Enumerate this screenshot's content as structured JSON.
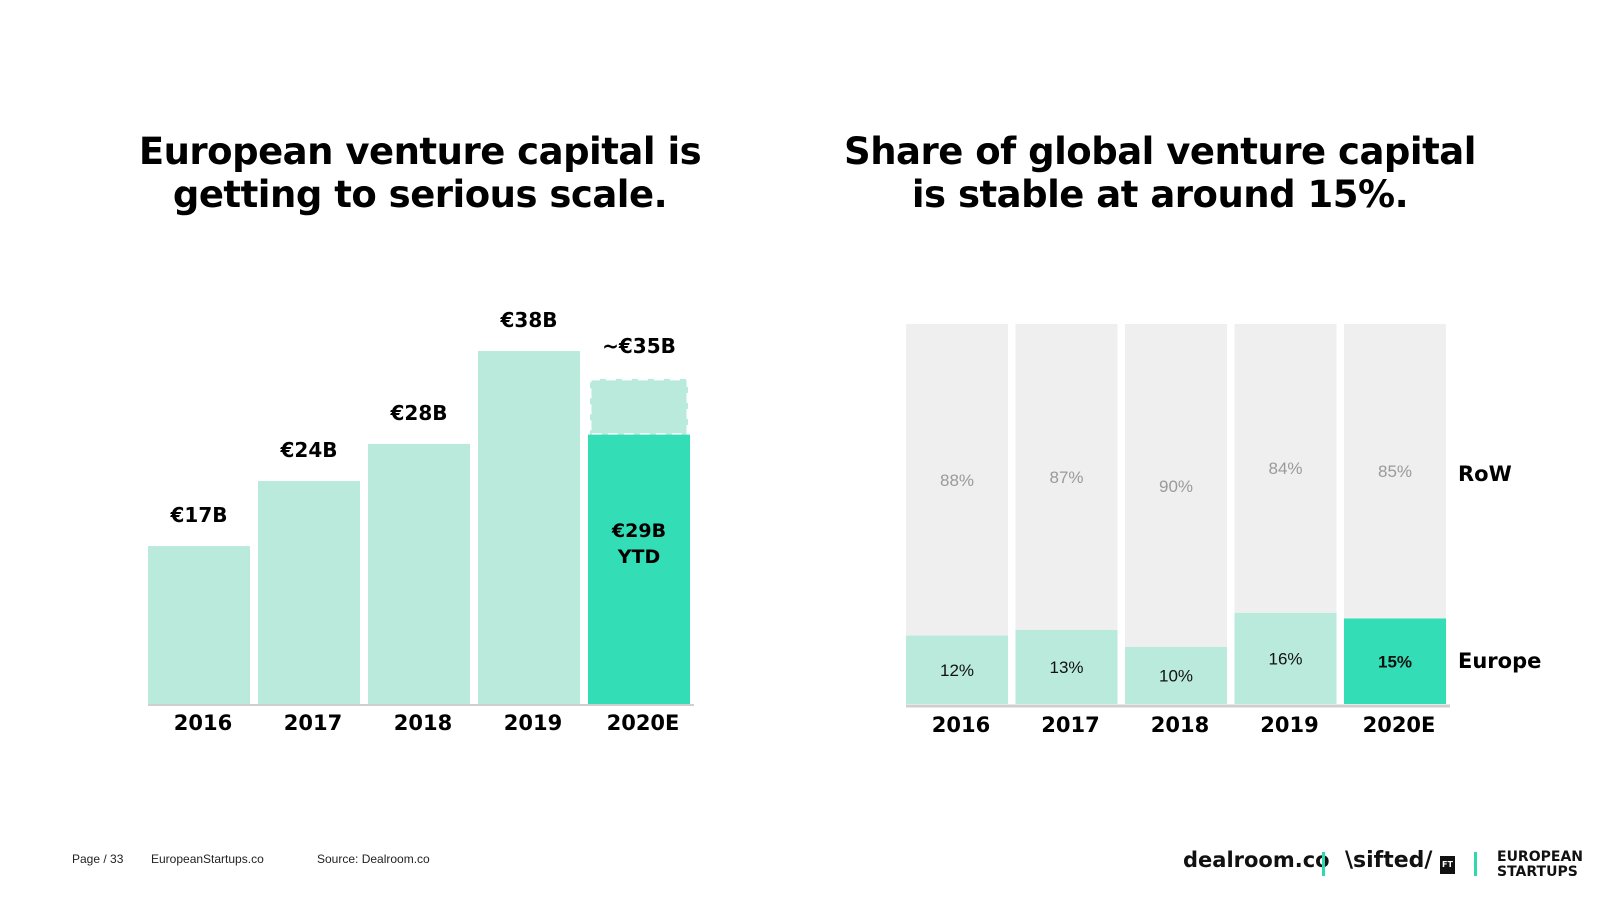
{
  "chart_data": [
    {
      "type": "bar",
      "title": "European venture capital is getting to serious scale.",
      "categories": [
        "2016",
        "2017",
        "2018",
        "2019",
        "2020E"
      ],
      "values": [
        17,
        24,
        28,
        38,
        29
      ],
      "value_labels": [
        "€17B",
        "€24B",
        "€28B",
        "€38B",
        "€29B YTD"
      ],
      "projection": {
        "category": "2020E",
        "value": 35,
        "label": "~€35B"
      },
      "unit": "€B",
      "ylim": [
        0,
        38
      ],
      "grid": false,
      "colors": {
        "bar": "#b9eadc",
        "highlight": "#33ddb5",
        "projection": "#b9eadc"
      }
    },
    {
      "type": "bar",
      "stacked": true,
      "percent": true,
      "title": "Share of global venture capital is stable at around 15%.",
      "categories": [
        "2016",
        "2017",
        "2018",
        "2019",
        "2020E"
      ],
      "series": [
        {
          "name": "Europe",
          "values": [
            12,
            13,
            10,
            16,
            15
          ],
          "labels": [
            "12%",
            "13%",
            "10%",
            "16%",
            "15%"
          ]
        },
        {
          "name": "RoW",
          "values": [
            88,
            87,
            90,
            84,
            85
          ],
          "labels": [
            "88%",
            "87%",
            "90%",
            "84%",
            "85%"
          ]
        }
      ],
      "ylim": [
        0,
        100
      ],
      "grid": false,
      "legend": "right",
      "colors": {
        "europe": "#b9eadc",
        "europe_highlight": "#33ddb5",
        "row": "#efefef"
      }
    }
  ],
  "footer": {
    "page": "Page / 33",
    "site": "EuropeanStartups.co",
    "source": "Source: Dealroom.co"
  },
  "logos": {
    "dealroom": "dealroom.co",
    "sifted": "\\sifted/",
    "ft": "FT",
    "european_startups_line1": "EUROPEAN",
    "european_startups_line2": "STARTUPS"
  }
}
